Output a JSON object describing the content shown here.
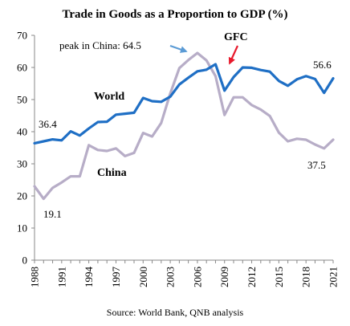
{
  "chart_data": {
    "type": "line",
    "title": "Trade in Goods as a Proportion to GDP (%)",
    "source": "Source: World Bank, QNB analysis",
    "xlabel": "",
    "ylabel": "",
    "xlim": [
      1988,
      2021
    ],
    "ylim": [
      0,
      70
    ],
    "yticks": [
      0,
      10,
      20,
      30,
      40,
      50,
      60,
      70
    ],
    "xticks": [
      1988,
      1991,
      1994,
      1997,
      2000,
      2003,
      2006,
      2009,
      2012,
      2015,
      2018,
      2021
    ],
    "grid": false,
    "x": [
      1988,
      1989,
      1990,
      1991,
      1992,
      1993,
      1994,
      1995,
      1996,
      1997,
      1998,
      1999,
      2000,
      2001,
      2002,
      2003,
      2004,
      2005,
      2006,
      2007,
      2008,
      2009,
      2010,
      2011,
      2012,
      2013,
      2014,
      2015,
      2016,
      2017,
      2018,
      2019,
      2020,
      2021
    ],
    "series": [
      {
        "name": "World",
        "color": "#1f6fc5",
        "values": [
          36.4,
          37.0,
          37.6,
          37.3,
          40.1,
          38.8,
          41.0,
          43.0,
          43.1,
          45.3,
          45.6,
          45.9,
          50.5,
          49.5,
          49.3,
          50.9,
          54.7,
          56.8,
          58.8,
          59.3,
          61.0,
          52.8,
          57.0,
          60.0,
          59.9,
          59.2,
          58.7,
          55.8,
          54.3,
          56.3,
          57.3,
          56.4,
          52.1,
          56.6
        ]
      },
      {
        "name": "China",
        "color": "#b7adc7",
        "values": [
          23.0,
          19.1,
          22.5,
          24.2,
          26.1,
          26.1,
          35.8,
          34.3,
          34.0,
          34.8,
          32.4,
          33.4,
          39.6,
          38.5,
          42.7,
          51.9,
          59.8,
          62.3,
          64.5,
          62.2,
          57.3,
          45.2,
          50.7,
          50.7,
          48.3,
          46.9,
          44.9,
          39.7,
          37.0,
          37.8,
          37.5,
          36.0,
          34.8,
          37.5
        ]
      }
    ],
    "annotations": [
      {
        "text": "peak in China: 64.5",
        "x": 2006,
        "y": 64.5,
        "arrow_color": "#5b9bd5"
      },
      {
        "text": "GFC",
        "x": 2009,
        "y": 53.5,
        "arrow_color": "#e8192c"
      },
      {
        "text": "36.4",
        "x": 1988,
        "y": 36.4
      },
      {
        "text": "19.1",
        "x": 1989,
        "y": 19.1
      },
      {
        "text": "56.6",
        "x": 2021,
        "y": 56.6
      },
      {
        "text": "37.5",
        "x": 2021,
        "y": 37.5
      }
    ]
  }
}
